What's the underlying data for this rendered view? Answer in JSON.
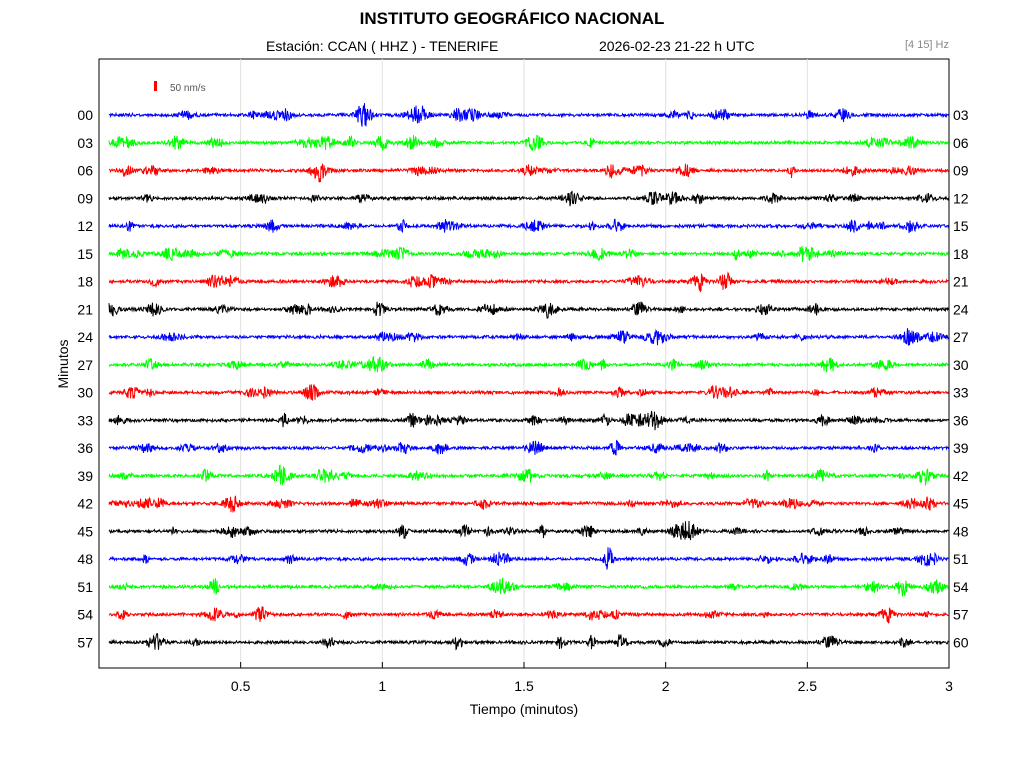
{
  "header": {
    "title": "INSTITUTO GEOGRÁFICO NACIONAL",
    "station": "Estación:  CCAN ( HHZ ) - TENERIFE",
    "datetime": "2026-02-23  21-22 h UTC",
    "filter": "[4 15] Hz"
  },
  "chart_data": {
    "type": "line",
    "title": "INSTITUTO GEOGRÁFICO NACIONAL",
    "xlabel": "Tiempo (minutos)",
    "ylabel": "Minutos",
    "xlim": [
      0,
      3
    ],
    "x_ticks": [
      0.5,
      1,
      1.5,
      2,
      2.5,
      3
    ],
    "x_tick_labels": [
      "0.5",
      "1",
      "1.5",
      "2",
      "2.5",
      "3"
    ],
    "left_labels": [
      "00",
      "03",
      "06",
      "09",
      "12",
      "15",
      "18",
      "21",
      "24",
      "27",
      "30",
      "33",
      "36",
      "39",
      "42",
      "45",
      "48",
      "51",
      "54",
      "57"
    ],
    "right_labels": [
      "03",
      "06",
      "09",
      "12",
      "15",
      "18",
      "21",
      "24",
      "27",
      "30",
      "33",
      "36",
      "39",
      "42",
      "45",
      "48",
      "51",
      "54",
      "57",
      "60"
    ],
    "trace_colors": [
      "#0000ff",
      "#00ff00",
      "#ff0000",
      "#000000"
    ],
    "scale_label": "50 nm/s",
    "scale_color": "#ff0000",
    "grid_x": true,
    "series_description": "20 seismogram traces, 3 minutes each, colour cycling blue/green/red/black"
  }
}
